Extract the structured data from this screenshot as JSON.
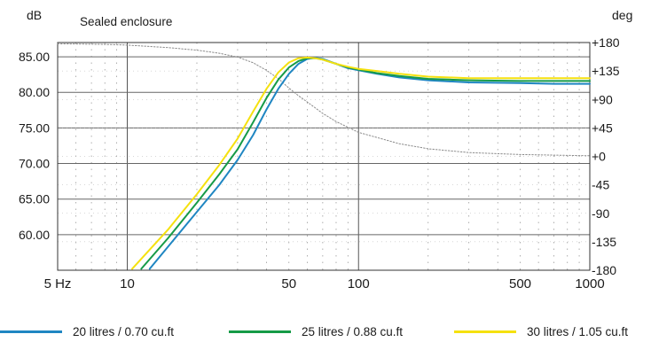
{
  "chart_data": {
    "type": "line",
    "title": "Sealed enclosure",
    "y_unit_left": "dB",
    "y_unit_right": "deg",
    "x_scale": "log",
    "xlim": [
      5,
      1000
    ],
    "ylim": [
      55,
      87
    ],
    "ylim_right": [
      -180,
      180
    ],
    "x_ticks": [
      {
        "value": 5,
        "label": "5 Hz"
      },
      {
        "value": 10,
        "label": "10"
      },
      {
        "value": 50,
        "label": "50"
      },
      {
        "value": 100,
        "label": "100"
      },
      {
        "value": 500,
        "label": "500"
      },
      {
        "value": 1000,
        "label": "1000"
      }
    ],
    "y_ticks": [
      {
        "value": 85,
        "label": "85.00"
      },
      {
        "value": 80,
        "label": "80.00"
      },
      {
        "value": 75,
        "label": "75.00"
      },
      {
        "value": 70,
        "label": "70.00"
      },
      {
        "value": 65,
        "label": "65.00"
      },
      {
        "value": 60,
        "label": "60.00"
      }
    ],
    "y_ticks_right": [
      {
        "value": 180,
        "label": "+180"
      },
      {
        "value": 135,
        "label": "+135"
      },
      {
        "value": 90,
        "label": "+90"
      },
      {
        "value": 45,
        "label": "+45"
      },
      {
        "value": 0,
        "label": "+0"
      },
      {
        "value": -45,
        "label": "-45"
      },
      {
        "value": -90,
        "label": "-90"
      },
      {
        "value": -135,
        "label": "-135"
      },
      {
        "value": -180,
        "label": "-180"
      }
    ],
    "grid": true,
    "series": [
      {
        "name": "20 litres / 0.70 cu.ft",
        "color": "#1f86c2",
        "axis": "left",
        "points": [
          [
            12.5,
            55.2
          ],
          [
            15,
            58.3
          ],
          [
            20,
            63.2
          ],
          [
            25,
            67.0
          ],
          [
            30,
            70.5
          ],
          [
            35,
            74.0
          ],
          [
            40,
            77.6
          ],
          [
            45,
            80.5
          ],
          [
            50,
            82.6
          ],
          [
            55,
            84.0
          ],
          [
            60,
            84.7
          ],
          [
            65,
            84.85
          ],
          [
            70,
            84.7
          ],
          [
            80,
            84.0
          ],
          [
            90,
            83.4
          ],
          [
            100,
            83.1
          ],
          [
            120,
            82.6
          ],
          [
            150,
            82.1
          ],
          [
            200,
            81.7
          ],
          [
            300,
            81.4
          ],
          [
            500,
            81.3
          ],
          [
            700,
            81.2
          ],
          [
            1000,
            81.2
          ]
        ]
      },
      {
        "name": "25 litres / 0.88 cu.ft",
        "color": "#169b47",
        "axis": "left",
        "points": [
          [
            11.5,
            55.2
          ],
          [
            15,
            59.5
          ],
          [
            20,
            64.5
          ],
          [
            25,
            68.5
          ],
          [
            30,
            72.0
          ],
          [
            35,
            75.8
          ],
          [
            40,
            79.2
          ],
          [
            45,
            81.8
          ],
          [
            50,
            83.5
          ],
          [
            55,
            84.4
          ],
          [
            60,
            84.8
          ],
          [
            65,
            84.8
          ],
          [
            70,
            84.6
          ],
          [
            80,
            84.0
          ],
          [
            90,
            83.5
          ],
          [
            100,
            83.2
          ],
          [
            120,
            82.7
          ],
          [
            150,
            82.3
          ],
          [
            200,
            81.9
          ],
          [
            300,
            81.7
          ],
          [
            500,
            81.6
          ],
          [
            700,
            81.6
          ],
          [
            1000,
            81.6
          ]
        ]
      },
      {
        "name": "30 litres / 1.05 cu.ft",
        "color": "#f5e10f",
        "axis": "left",
        "points": [
          [
            10.5,
            55.2
          ],
          [
            15,
            60.7
          ],
          [
            20,
            65.7
          ],
          [
            25,
            69.8
          ],
          [
            30,
            73.5
          ],
          [
            35,
            77.3
          ],
          [
            40,
            80.5
          ],
          [
            45,
            82.8
          ],
          [
            50,
            84.2
          ],
          [
            55,
            84.8
          ],
          [
            60,
            84.9
          ],
          [
            65,
            84.8
          ],
          [
            70,
            84.6
          ],
          [
            80,
            84.0
          ],
          [
            90,
            83.6
          ],
          [
            100,
            83.3
          ],
          [
            120,
            83.0
          ],
          [
            150,
            82.6
          ],
          [
            200,
            82.2
          ],
          [
            300,
            82.0
          ],
          [
            500,
            82.0
          ],
          [
            700,
            82.0
          ],
          [
            1000,
            82.0
          ]
        ]
      },
      {
        "name": "",
        "color": "#8a8a8a",
        "axis": "right",
        "style": "dotted",
        "points": [
          [
            5,
            178
          ],
          [
            8,
            177
          ],
          [
            10,
            176
          ],
          [
            15,
            172
          ],
          [
            20,
            168
          ],
          [
            25,
            163
          ],
          [
            30,
            157
          ],
          [
            35,
            148
          ],
          [
            40,
            136
          ],
          [
            45,
            123
          ],
          [
            50,
            108
          ],
          [
            55,
            96
          ],
          [
            60,
            86
          ],
          [
            70,
            68
          ],
          [
            80,
            55
          ],
          [
            100,
            38
          ],
          [
            150,
            20
          ],
          [
            200,
            12
          ],
          [
            300,
            6
          ],
          [
            500,
            3
          ],
          [
            1000,
            1
          ]
        ]
      }
    ],
    "legend": {
      "position": "bottom",
      "entries": [
        {
          "label": "20 litres / 0.70 cu.ft",
          "color": "#1f86c2"
        },
        {
          "label": "25 litres / 0.88 cu.ft",
          "color": "#169b47"
        },
        {
          "label": "30 litres / 1.05 cu.ft",
          "color": "#f5e10f"
        }
      ]
    }
  }
}
